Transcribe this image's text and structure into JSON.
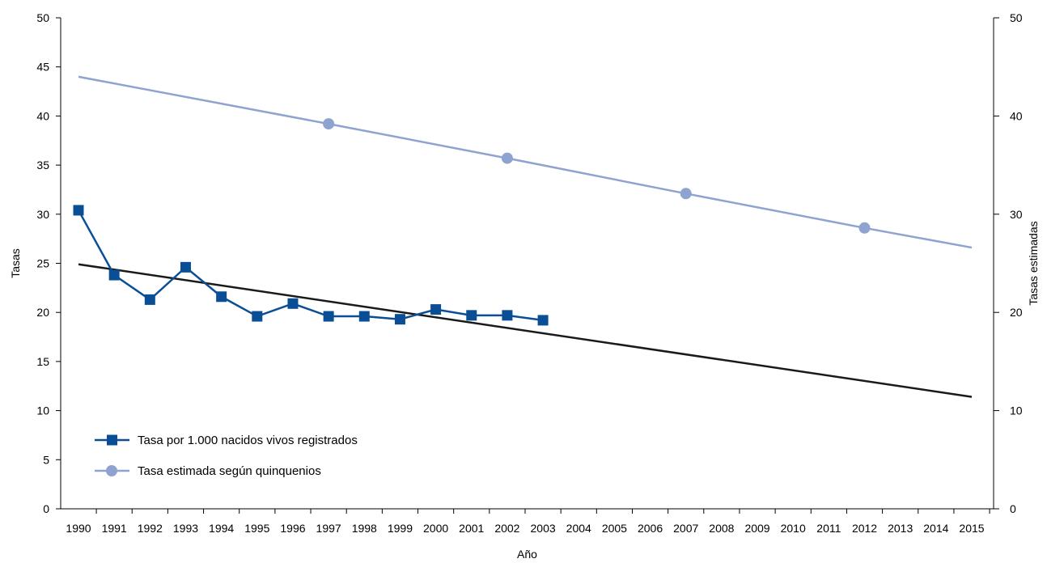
{
  "chart_data": {
    "type": "line",
    "title": "",
    "xlabel": "Año",
    "ylabel": "Tasas",
    "y2label": "Tasas estimadas",
    "ylim": [
      0,
      50
    ],
    "y2lim": [
      0,
      50
    ],
    "yticks": [
      0,
      5,
      10,
      15,
      20,
      25,
      30,
      35,
      40,
      45,
      50
    ],
    "y2ticks": [
      0,
      10,
      20,
      30,
      40,
      50
    ],
    "x_categories": [
      "1990",
      "1991",
      "1992",
      "1993",
      "1994",
      "1995",
      "1996",
      "1997",
      "1998",
      "1999",
      "2000",
      "2001",
      "2002",
      "2003",
      "2004",
      "2005",
      "2006",
      "2007",
      "2008",
      "2009",
      "2010",
      "2011",
      "2012",
      "2013",
      "2014",
      "2015"
    ],
    "xlim": [
      1990,
      2015
    ],
    "grid": false,
    "legend_position": "bottom-left",
    "series": [
      {
        "name": "Tasa por 1.000 nacidos vivos registrados",
        "color": "#0a4f95",
        "marker": "square",
        "axis": "left",
        "x": [
          1990,
          1991,
          1992,
          1993,
          1994,
          1995,
          1996,
          1997,
          1998,
          1999,
          2000,
          2001,
          2002,
          2003
        ],
        "y": [
          30.4,
          23.8,
          21.3,
          24.6,
          21.6,
          19.6,
          20.9,
          19.6,
          19.6,
          19.3,
          20.3,
          19.7,
          19.7,
          19.2
        ]
      },
      {
        "name": "Tasa estimada según quinquenios",
        "color": "#8fa3d1",
        "marker": "circle",
        "axis": "right",
        "x": [
          1990,
          1997,
          2002,
          2007,
          2012,
          2015
        ],
        "y": [
          44.0,
          39.2,
          35.7,
          32.1,
          28.6,
          26.6
        ],
        "marked_x": [
          1997,
          2002,
          2007,
          2012
        ]
      },
      {
        "color": "#1a1a1a",
        "marker": "none",
        "axis": "left",
        "x": [
          1990,
          2015
        ],
        "y": [
          24.9,
          11.4
        ]
      }
    ]
  }
}
